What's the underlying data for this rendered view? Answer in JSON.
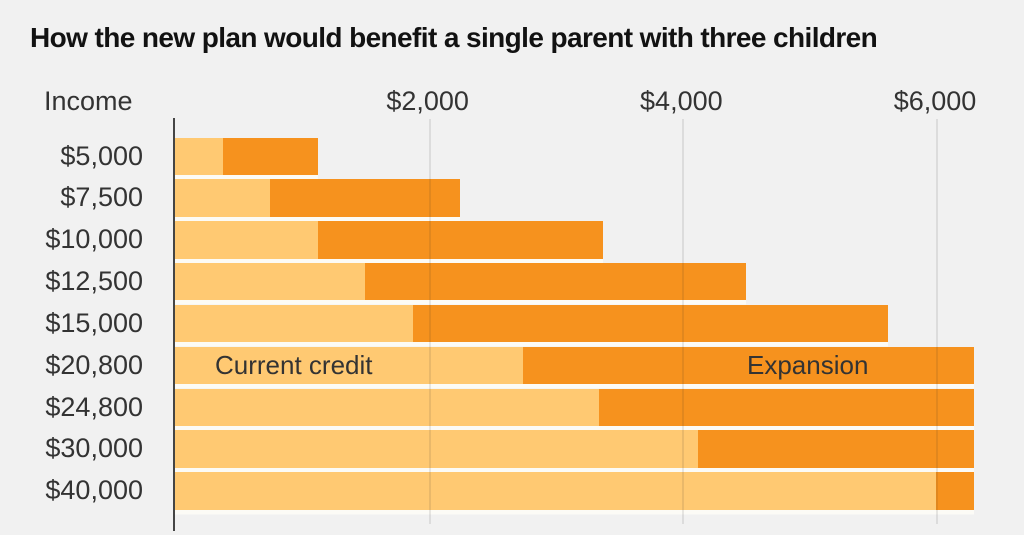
{
  "title": "How the new plan would benefit a single parent with three children",
  "chart_data": {
    "type": "bar",
    "orientation": "horizontal",
    "stacked": true,
    "title": "How the new plan would benefit a single parent with three children",
    "y_header": "Income",
    "x_ticks": [
      {
        "label": "$2,000",
        "value": 2000
      },
      {
        "label": "$4,000",
        "value": 4000
      },
      {
        "label": "$6,000",
        "value": 6000
      }
    ],
    "xlim": [
      0,
      6300
    ],
    "grid": "vertical-lines-on",
    "legend_position": "labels-inside-bars",
    "series": [
      {
        "name": "Current credit",
        "color": "#FFC972"
      },
      {
        "name": "Expansion",
        "color": "#F6921E"
      }
    ],
    "categories": [
      "$5,000",
      "$7,500",
      "$10,000",
      "$12,500",
      "$15,000",
      "$20,800",
      "$24,800",
      "$30,000",
      "$40,000"
    ],
    "rows": [
      {
        "income": "$5,000",
        "current_credit": 375,
        "expansion": 750,
        "total": 1125
      },
      {
        "income": "$7,500",
        "current_credit": 750,
        "expansion": 1500,
        "total": 2250
      },
      {
        "income": "$10,000",
        "current_credit": 1125,
        "expansion": 2250,
        "total": 3375
      },
      {
        "income": "$12,500",
        "current_credit": 1500,
        "expansion": 3000,
        "total": 4500
      },
      {
        "income": "$15,000",
        "current_credit": 1875,
        "expansion": 3750,
        "total": 5625
      },
      {
        "income": "$20,800",
        "current_credit": 2745,
        "expansion": 3555,
        "total": 6300
      },
      {
        "income": "$24,800",
        "current_credit": 3345,
        "expansion": 2955,
        "total": 6300
      },
      {
        "income": "$30,000",
        "current_credit": 4125,
        "expansion": 2175,
        "total": 6300
      },
      {
        "income": "$40,000",
        "current_credit": 6000,
        "expansion": 300,
        "total": 6300
      }
    ],
    "in_bar_labels": {
      "row_index": 5,
      "current_label": "Current credit",
      "expansion_label": "Expansion"
    },
    "colors": {
      "background": "#F1F1F1",
      "current_credit": "#FFC972",
      "expansion": "#F6921E",
      "axis_line": "#454545",
      "text": "#333333",
      "title_text": "#121212"
    }
  }
}
